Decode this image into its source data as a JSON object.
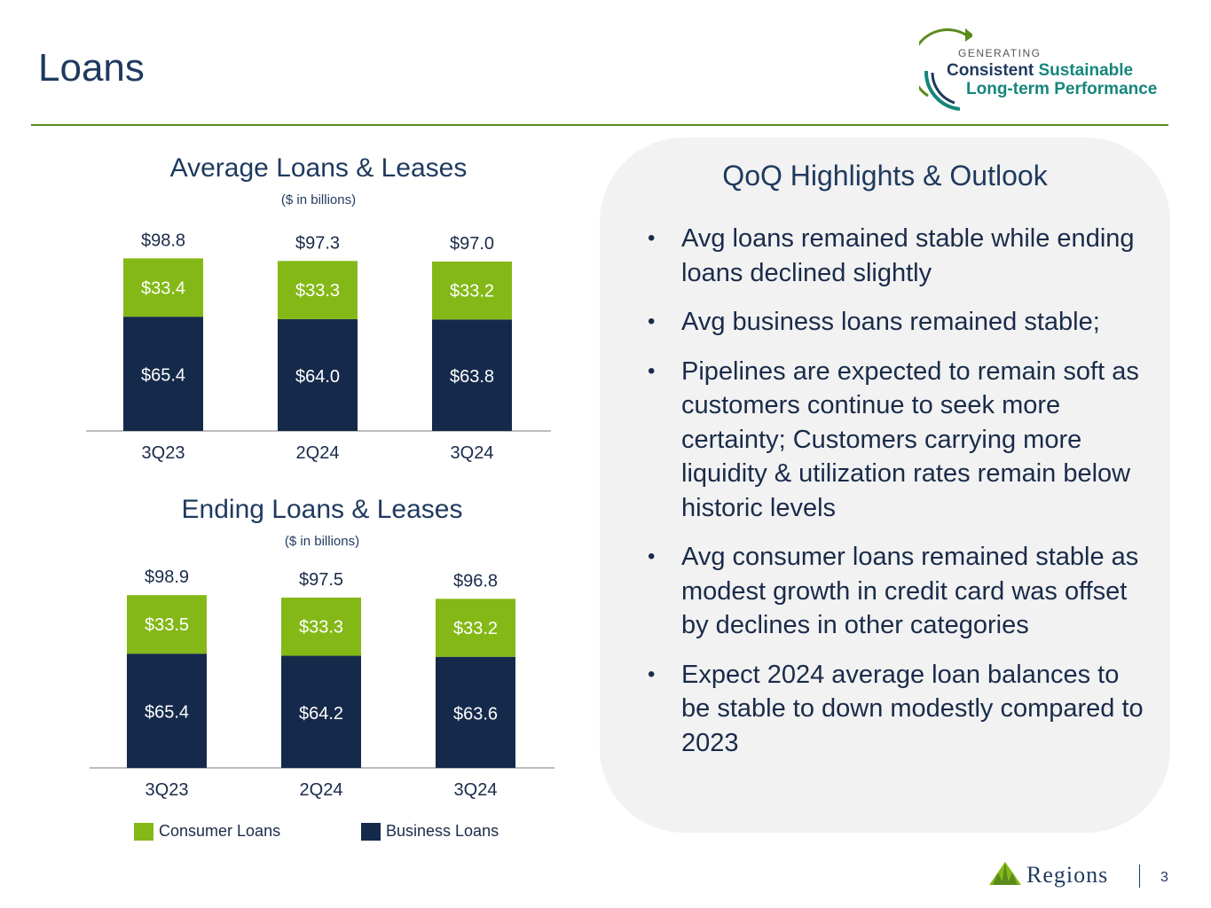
{
  "page": {
    "title": "Loans",
    "page_number": "3"
  },
  "logo": {
    "generating": "GENERATING",
    "consistent": "Consistent",
    "sustainable": "Sustainable",
    "long_term": "Long-term Performance",
    "regions": "Regions"
  },
  "colors": {
    "consumer": "#84b817",
    "business": "#152a4b",
    "accent_green": "#5a8a1c",
    "dark_blue": "#1f3a5f",
    "teal": "#16867b",
    "panel_bg": "#f2f2f2"
  },
  "legend": {
    "consumer": "Consumer Loans",
    "business": "Business Loans"
  },
  "chart_data": [
    {
      "type": "bar",
      "stacked": true,
      "title": "Average Loans & Leases",
      "subtitle": "($ in billions)",
      "categories": [
        "3Q23",
        "2Q24",
        "3Q24"
      ],
      "series": [
        {
          "name": "Business Loans",
          "values": [
            65.4,
            64.0,
            63.8
          ],
          "labels": [
            "$65.4",
            "$64.0",
            "$63.8"
          ]
        },
        {
          "name": "Consumer Loans",
          "values": [
            33.4,
            33.3,
            33.2
          ],
          "labels": [
            "$33.4",
            "$33.3",
            "$33.2"
          ]
        }
      ],
      "totals": [
        "$98.8",
        "$97.3",
        "$97.0"
      ]
    },
    {
      "type": "bar",
      "stacked": true,
      "title": "Ending Loans & Leases",
      "subtitle": "($ in billions)",
      "categories": [
        "3Q23",
        "2Q24",
        "3Q24"
      ],
      "series": [
        {
          "name": "Business Loans",
          "values": [
            65.4,
            64.2,
            63.6
          ],
          "labels": [
            "$65.4",
            "$64.2",
            "$63.6"
          ]
        },
        {
          "name": "Consumer Loans",
          "values": [
            33.5,
            33.3,
            33.2
          ],
          "labels": [
            "$33.5",
            "$33.3",
            "$33.2"
          ]
        }
      ],
      "totals": [
        "$98.9",
        "$97.5",
        "$96.8"
      ]
    }
  ],
  "highlights": {
    "heading": "QoQ Highlights & Outlook",
    "bullets": [
      "Avg loans remained stable while ending loans declined slightly",
      "Avg business loans remained stable;",
      "Pipelines are expected to remain soft as customers continue to seek more certainty; Customers carrying more liquidity & utilization rates remain below historic levels",
      "Avg consumer loans remained stable as modest growth in credit card was offset by declines in other categories",
      "Expect 2024 average loan balances to be stable to down modestly compared to 2023"
    ]
  }
}
